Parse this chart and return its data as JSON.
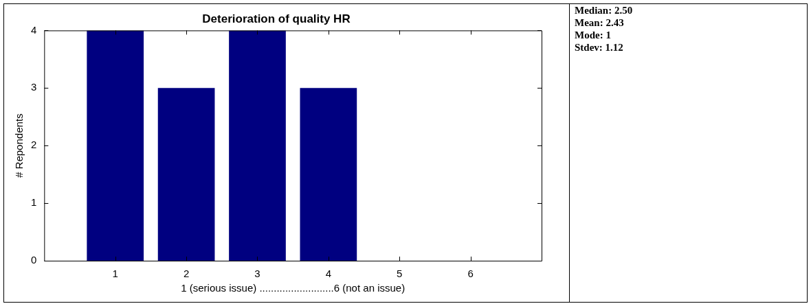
{
  "chart_data": {
    "type": "bar",
    "title": "Deterioration of quality HR",
    "xlabel": "1 (serious issue) ..........................6 (not an issue)",
    "ylabel": "# Repondents",
    "x": [
      1,
      2,
      3,
      4,
      5,
      6
    ],
    "values": [
      4,
      3,
      4,
      3,
      0,
      0
    ],
    "color": "#000080",
    "xlim": [
      0,
      7
    ],
    "xticks": [
      1,
      2,
      3,
      4,
      5,
      6
    ],
    "ylim": [
      0,
      4
    ],
    "yticks": [
      0,
      1,
      2,
      3,
      4
    ],
    "annotations": [
      "Median: 2.50",
      "Mean: 2.43",
      "Mode: 1",
      "Stdev: 1.12"
    ]
  }
}
